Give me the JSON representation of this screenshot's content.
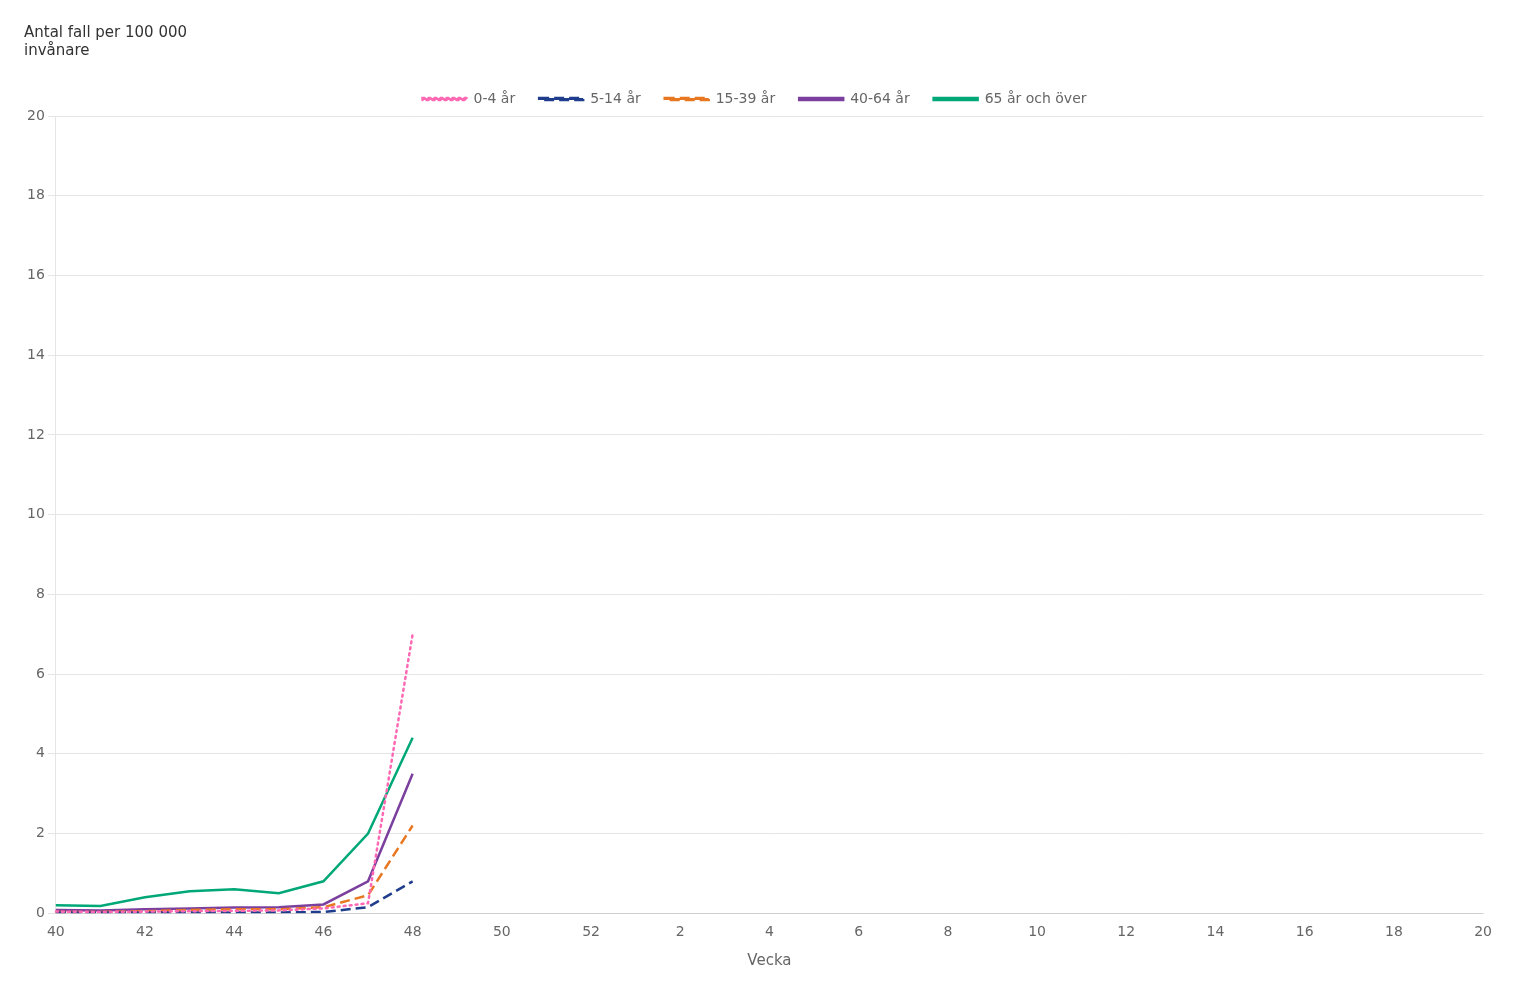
{
  "chart_data": {
    "type": "line",
    "ylabel": [
      "Antal fall per 100 000",
      "invånare"
    ],
    "xlabel": "Vecka",
    "categories": [
      "40",
      null,
      "42",
      null,
      "44",
      null,
      "46",
      null,
      "48",
      null,
      "50",
      null,
      "52",
      null,
      "2",
      null,
      "4",
      null,
      "6",
      null,
      "8",
      null,
      "10",
      null,
      "12",
      null,
      "14",
      null,
      "16",
      null,
      "18",
      null,
      "20"
    ],
    "series": [
      {
        "name": "0-4 år",
        "color": "#FF69B4",
        "line_style": "dotted",
        "values": [
          0.04,
          0.03,
          0.04,
          0.05,
          0.06,
          0.07,
          0.12,
          0.25,
          7.0,
          null,
          null,
          null,
          null,
          null,
          null,
          null,
          null,
          null,
          null,
          null,
          null,
          null,
          null,
          null,
          null,
          null,
          null,
          null,
          null,
          null,
          null,
          null,
          null
        ]
      },
      {
        "name": "5-14 år",
        "color": "#1F3D8C",
        "line_style": "dashed",
        "values": [
          0.02,
          0.02,
          0.02,
          0.02,
          0.02,
          0.02,
          0.03,
          0.15,
          0.8,
          null,
          null,
          null,
          null,
          null,
          null,
          null,
          null,
          null,
          null,
          null,
          null,
          null,
          null,
          null,
          null,
          null,
          null,
          null,
          null,
          null,
          null,
          null,
          null
        ]
      },
      {
        "name": "15-39 år",
        "color": "#E87722",
        "line_style": "dashed",
        "values": [
          0.03,
          0.03,
          0.05,
          0.08,
          0.1,
          0.1,
          0.15,
          0.45,
          2.2,
          null,
          null,
          null,
          null,
          null,
          null,
          null,
          null,
          null,
          null,
          null,
          null,
          null,
          null,
          null,
          null,
          null,
          null,
          null,
          null,
          null,
          null,
          null,
          null
        ]
      },
      {
        "name": "40-64 år",
        "color": "#7B3F9E",
        "line_style": "solid",
        "values": [
          0.08,
          0.07,
          0.1,
          0.12,
          0.14,
          0.15,
          0.22,
          0.8,
          3.5,
          null,
          null,
          null,
          null,
          null,
          null,
          null,
          null,
          null,
          null,
          null,
          null,
          null,
          null,
          null,
          null,
          null,
          null,
          null,
          null,
          null,
          null,
          null,
          null
        ]
      },
      {
        "name": "65 år och över",
        "color": "#00A878",
        "line_style": "solid",
        "values": [
          0.2,
          0.18,
          0.4,
          0.55,
          0.6,
          0.5,
          0.8,
          2.0,
          4.4,
          null,
          null,
          null,
          null,
          null,
          null,
          null,
          null,
          null,
          null,
          null,
          null,
          null,
          null,
          null,
          null,
          null,
          null,
          null,
          null,
          null,
          null,
          null,
          null
        ]
      }
    ],
    "ylim": [
      0,
      20
    ],
    "yticks": [
      0,
      2,
      4,
      6,
      8,
      10,
      12,
      14,
      16,
      18,
      20
    ],
    "grid": true,
    "legend": "top"
  }
}
